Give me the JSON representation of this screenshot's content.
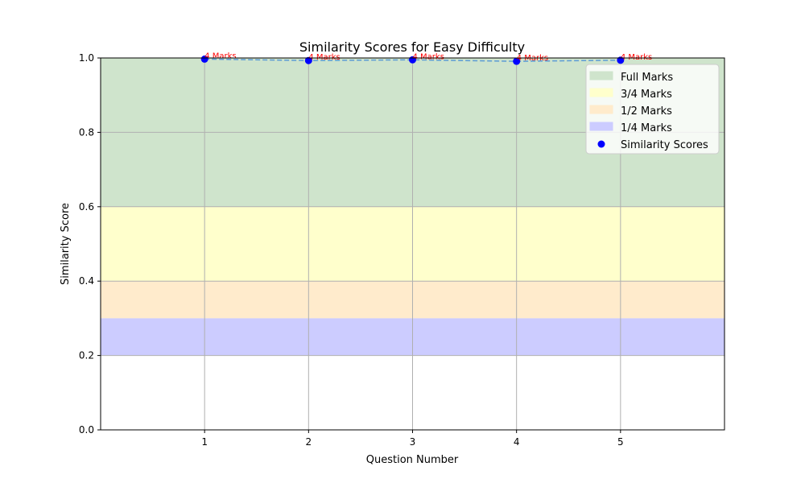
{
  "chart_data": {
    "type": "scatter",
    "title": "Similarity Scores for Easy Difficulty",
    "xlabel": "Question Number",
    "ylabel": "Similarity Score",
    "xlim": [
      0,
      6
    ],
    "ylim": [
      0,
      1
    ],
    "x_ticks": [
      "1",
      "2",
      "3",
      "4",
      "5"
    ],
    "y_ticks": [
      "0.0",
      "0.2",
      "0.4",
      "0.6",
      "0.8",
      "1.0"
    ],
    "grid": true,
    "legend_position": "top-right",
    "bands": [
      {
        "name": "Full Marks",
        "from": 0.6,
        "to": 1.0,
        "color": "#cfe4cc"
      },
      {
        "name": "3/4 Marks",
        "from": 0.4,
        "to": 0.6,
        "color": "#ffffcc"
      },
      {
        "name": "1/2 Marks",
        "from": 0.3,
        "to": 0.4,
        "color": "#ffebcc"
      },
      {
        "name": "1/4 Marks",
        "from": 0.2,
        "to": 0.3,
        "color": "#ccccff"
      }
    ],
    "series": [
      {
        "name": "Similarity Scores",
        "color": "#0000ff",
        "line_color": "#5b9bd5",
        "x": [
          1,
          2,
          3,
          4,
          5
        ],
        "y": [
          0.997,
          0.993,
          0.995,
          0.991,
          0.994
        ],
        "labels": [
          "4 Marks",
          "4 Marks",
          "4 Marks",
          "4 Marks",
          "4 Marks"
        ]
      }
    ],
    "annotation_color": "#ff0000"
  }
}
